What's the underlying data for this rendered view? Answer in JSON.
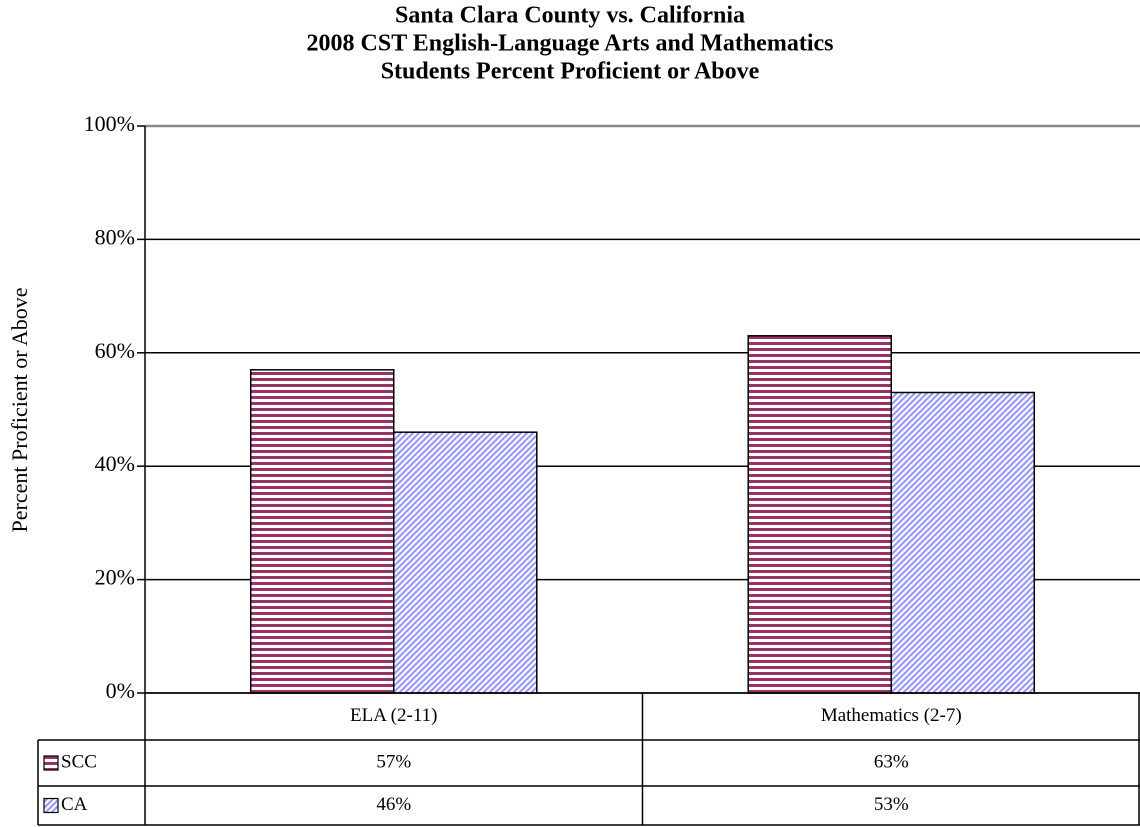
{
  "chart_data": {
    "type": "bar",
    "title": [
      "Santa Clara County vs. California",
      "2008 CST English-Language Arts and Mathematics",
      "Students Percent Proficient or Above"
    ],
    "ylabel": "Percent Proficient or Above",
    "categories": [
      "ELA (2-11)",
      "Mathematics (2-7)"
    ],
    "series": [
      {
        "name": "SCC",
        "color": "#993366",
        "values": [
          57,
          63
        ],
        "value_labels": [
          "57%",
          "63%"
        ]
      },
      {
        "name": "CA",
        "color": "#9999ff",
        "values": [
          46,
          53
        ],
        "value_labels": [
          "46%",
          "53%"
        ]
      }
    ],
    "ylim": [
      0,
      100
    ],
    "yticks": [
      {
        "value": 0,
        "label": "0%"
      },
      {
        "value": 20,
        "label": "20%"
      },
      {
        "value": 40,
        "label": "40%"
      },
      {
        "value": 60,
        "label": "60%"
      },
      {
        "value": 80,
        "label": "80%"
      },
      {
        "value": 100,
        "label": "100%"
      }
    ],
    "grid": true
  }
}
